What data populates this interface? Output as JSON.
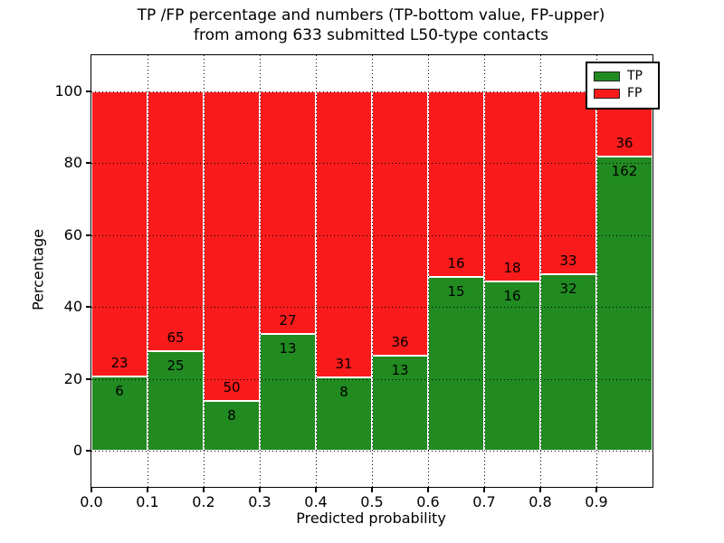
{
  "chart_data": {
    "type": "bar",
    "stacked": true,
    "title_line1": "TP /FP percentage and numbers (TP-bottom value, FP-upper)",
    "title_line2": "from among 633 submitted L50-type contacts",
    "xlabel": "Predicted probability",
    "ylabel": "Percentage",
    "total_contacts": 633,
    "bin_edges": [
      0.0,
      0.1,
      0.2,
      0.3,
      0.4,
      0.5,
      0.6,
      0.7,
      0.8,
      0.9,
      1.0
    ],
    "x_tick_labels": [
      "0.0",
      "0.1",
      "0.2",
      "0.3",
      "0.4",
      "0.5",
      "0.6",
      "0.7",
      "0.8",
      "0.9"
    ],
    "y_tick_values": [
      0,
      20,
      40,
      60,
      80,
      100
    ],
    "xlim": [
      0.0,
      1.0
    ],
    "ylim": [
      -10,
      110
    ],
    "grid": "dotted",
    "legend_position": "upper right",
    "series": [
      {
        "name": "TP",
        "color": "#218a21",
        "counts": [
          6,
          25,
          8,
          13,
          8,
          13,
          15,
          16,
          32,
          162
        ]
      },
      {
        "name": "FP",
        "color": "#f91b1b",
        "counts": [
          23,
          65,
          50,
          27,
          31,
          36,
          16,
          18,
          33,
          36
        ]
      }
    ],
    "tp_percent_of_bin": [
      20.69,
      27.78,
      13.79,
      32.5,
      20.51,
      26.53,
      48.39,
      47.06,
      49.23,
      81.82
    ]
  },
  "legend": {
    "entries": [
      {
        "label": "TP",
        "color": "#218a21"
      },
      {
        "label": "FP",
        "color": "#f91b1b"
      }
    ]
  }
}
